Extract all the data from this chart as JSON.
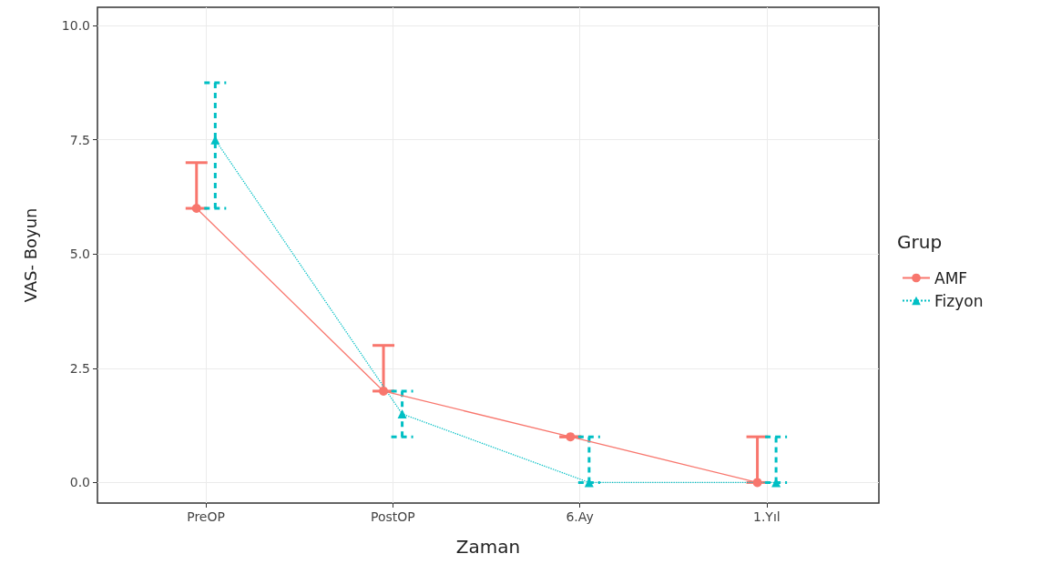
{
  "chart_data": {
    "type": "line",
    "xlabel": "Zaman",
    "ylabel": "VAS- Boyun",
    "legend_title": "Grup",
    "categories": [
      "PreOP",
      "PostOP",
      "6.Ay",
      "1.Yıl"
    ],
    "series": [
      {
        "name": "AMF",
        "color": "#f8766d",
        "marker": "circle",
        "line_style": "solid",
        "values": [
          6,
          2,
          1,
          0
        ],
        "errors": [
          [
            6,
            7
          ],
          [
            2,
            3
          ],
          [
            1,
            1
          ],
          [
            0,
            1
          ]
        ]
      },
      {
        "name": "Fizyon",
        "color": "#00bfc4",
        "marker": "triangle",
        "line_style": "dotted",
        "values": [
          7.5,
          1.5,
          0,
          0
        ],
        "errors": [
          [
            6,
            8.75
          ],
          [
            1,
            2
          ],
          [
            0,
            1
          ],
          [
            0,
            1
          ]
        ]
      }
    ],
    "ylim": [
      -0.45,
      10.4
    ],
    "yticks": [
      {
        "value": 0,
        "label": "0.0"
      },
      {
        "value": 2.5,
        "label": "2.5"
      },
      {
        "value": 5,
        "label": "5.0"
      },
      {
        "value": 7.5,
        "label": "7.5"
      },
      {
        "value": 10,
        "label": "10.0"
      }
    ],
    "grid": true,
    "legend": "right"
  }
}
